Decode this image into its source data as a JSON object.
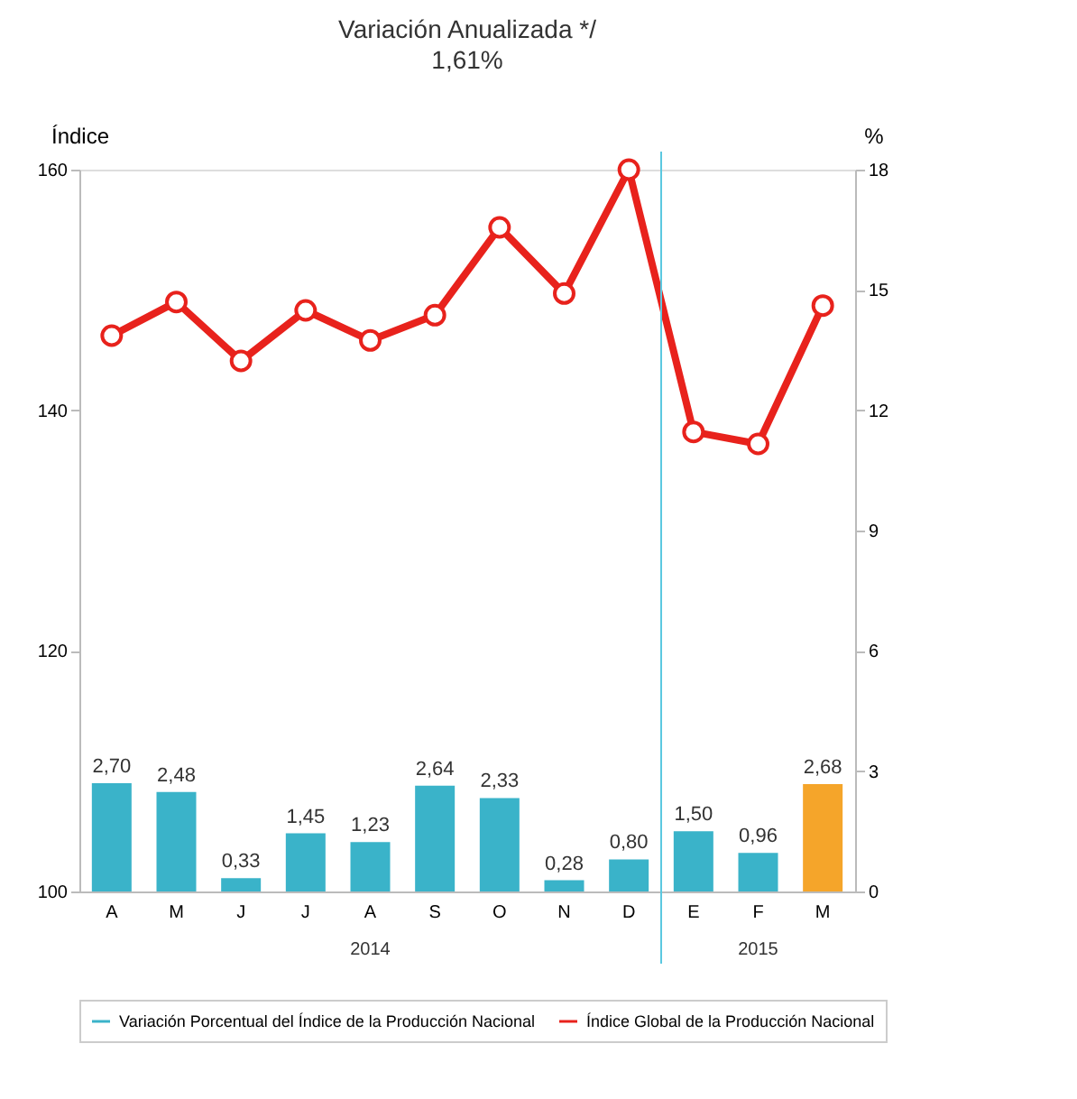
{
  "chart_data": {
    "type": "bar",
    "title": "Variación Anualizada */",
    "subtitle": "1,61%",
    "ylabel": "Índice",
    "y2label": "%",
    "categories": [
      "A",
      "M",
      "J",
      "J",
      "A",
      "S",
      "O",
      "N",
      "D",
      "E",
      "F",
      "M"
    ],
    "series": [
      {
        "name": "Variación Porcentual del Índice de la Producción Nacional",
        "axis": "y2",
        "color": "#3ab3c9",
        "colors": [
          "#3ab3c9",
          "#3ab3c9",
          "#3ab3c9",
          "#3ab3c9",
          "#3ab3c9",
          "#3ab3c9",
          "#3ab3c9",
          "#3ab3c9",
          "#3ab3c9",
          "#3ab3c9",
          "#3ab3c9",
          "#f5a52a"
        ],
        "values": [
          2.7,
          2.48,
          0.33,
          1.45,
          1.23,
          2.64,
          2.33,
          0.28,
          0.8,
          1.5,
          0.96,
          2.68
        ],
        "value_labels": [
          "2,70",
          "2,48",
          "0,33",
          "1,45",
          "1,23",
          "2,64",
          "2,33",
          "0,28",
          "0,80",
          "1,50",
          "0,96",
          "2,68"
        ]
      },
      {
        "name": "Índice Global de la Producción Nacional",
        "type": "line",
        "axis": "y",
        "color": "#e8221c",
        "marker": "circle",
        "values": [
          146.2,
          149.0,
          144.1,
          148.3,
          145.8,
          147.9,
          155.2,
          149.7,
          160,
          138.2,
          137.2,
          148.7
        ]
      }
    ],
    "ylim": [
      100,
      160
    ],
    "yticks": [
      100,
      120,
      140,
      160
    ],
    "y2lim": [
      0,
      18
    ],
    "y2ticks": [
      0,
      3,
      6,
      9,
      12,
      15,
      18
    ],
    "ref_lines": [
      {
        "axis": "x",
        "value": "E",
        "color": "#5bc8e0"
      }
    ],
    "annotations": [
      "2014",
      "2015"
    ],
    "legend": "bottom",
    "grid": false
  }
}
